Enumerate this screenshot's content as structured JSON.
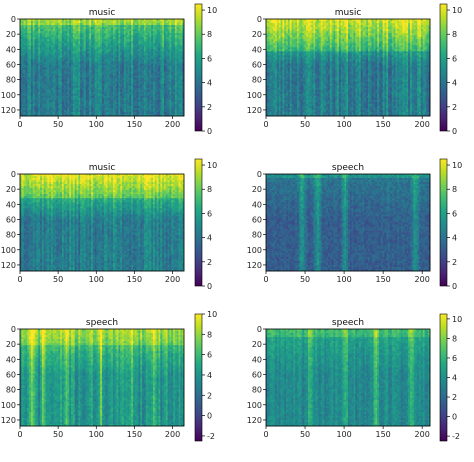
{
  "chart_data": [
    {
      "type": "heatmap",
      "title": "music",
      "xlabel": "",
      "ylabel": "",
      "xlim": [
        0,
        215
      ],
      "ylim": [
        128,
        0
      ],
      "xticks": [
        0,
        50,
        100,
        150,
        200
      ],
      "yticks": [
        0,
        20,
        40,
        60,
        80,
        100,
        120
      ],
      "colorbar": {
        "min": 0,
        "max": 10.5,
        "ticks": [
          0,
          2,
          4,
          6,
          8,
          10
        ]
      },
      "colormap": "viridis",
      "pattern": {
        "base_top": 8.0,
        "base_bottom": 4.5,
        "stripe": 2.2,
        "seed": 11,
        "bright_band_rows": [
          0,
          6
        ]
      }
    },
    {
      "type": "heatmap",
      "title": "music",
      "xlabel": "",
      "ylabel": "",
      "xlim": [
        0,
        210
      ],
      "ylim": [
        128,
        0
      ],
      "xticks": [
        0,
        50,
        100,
        150,
        200
      ],
      "yticks": [
        0,
        20,
        40,
        60,
        80,
        100,
        120
      ],
      "colorbar": {
        "min": 0,
        "max": 10.5,
        "ticks": [
          0,
          2,
          4,
          6,
          8,
          10
        ]
      },
      "colormap": "viridis",
      "pattern": {
        "base_top": 8.8,
        "base_bottom": 4.5,
        "stripe": 2.4,
        "seed": 23,
        "bright_band_rows": [
          0,
          40
        ]
      }
    },
    {
      "type": "heatmap",
      "title": "music",
      "xlabel": "",
      "ylabel": "",
      "xlim": [
        0,
        215
      ],
      "ylim": [
        128,
        0
      ],
      "xticks": [
        0,
        50,
        100,
        150,
        200
      ],
      "yticks": [
        0,
        20,
        40,
        60,
        80,
        100,
        120
      ],
      "colorbar": {
        "min": 0,
        "max": 10.5,
        "ticks": [
          0,
          2,
          4,
          6,
          8,
          10
        ]
      },
      "colormap": "viridis",
      "pattern": {
        "base_top": 9.0,
        "base_bottom": 4.5,
        "stripe": 2.0,
        "seed": 37,
        "bright_band_rows": [
          0,
          30
        ]
      }
    },
    {
      "type": "heatmap",
      "title": "speech",
      "xlabel": "",
      "ylabel": "",
      "xlim": [
        0,
        210
      ],
      "ylim": [
        128,
        0
      ],
      "xticks": [
        0,
        50,
        100,
        150,
        200
      ],
      "yticks": [
        0,
        20,
        40,
        60,
        80,
        100,
        120
      ],
      "colorbar": {
        "min": 0,
        "max": 10.5,
        "ticks": [
          0,
          2,
          4,
          6,
          8,
          10
        ]
      },
      "colormap": "viridis",
      "pattern": {
        "base_top": 4.2,
        "base_bottom": 3.2,
        "stripe": 0.6,
        "seed": 53,
        "bright_band_rows": [
          0,
          4
        ],
        "bright_columns": [
          45,
          65,
          100,
          190
        ]
      }
    },
    {
      "type": "heatmap",
      "title": "speech",
      "xlabel": "",
      "ylabel": "",
      "xlim": [
        0,
        215
      ],
      "ylim": [
        128,
        0
      ],
      "xticks": [
        0,
        50,
        100,
        150,
        200
      ],
      "yticks": [
        0,
        20,
        40,
        60,
        80,
        100,
        120
      ],
      "colorbar": {
        "min": -2.5,
        "max": 10,
        "ticks": [
          -2,
          0,
          2,
          4,
          6,
          8,
          10
        ]
      },
      "colormap": "viridis",
      "pattern": {
        "base_top": 7.0,
        "base_bottom": 4.0,
        "stripe": 2.6,
        "seed": 71,
        "bright_band_rows": [
          0,
          20
        ],
        "bright_columns": [
          15,
          30,
          60,
          105,
          145,
          175
        ]
      }
    },
    {
      "type": "heatmap",
      "title": "speech",
      "xlabel": "",
      "ylabel": "",
      "xlim": [
        0,
        210
      ],
      "ylim": [
        128,
        0
      ],
      "xticks": [
        0,
        50,
        100,
        150,
        200
      ],
      "yticks": [
        0,
        20,
        40,
        60,
        80,
        100,
        120
      ],
      "colorbar": {
        "min": -2.5,
        "max": 10.5,
        "ticks": [
          -2,
          0,
          2,
          4,
          6,
          8,
          10
        ]
      },
      "colormap": "viridis",
      "pattern": {
        "base_top": 5.2,
        "base_bottom": 3.6,
        "stripe": 1.8,
        "seed": 89,
        "bright_band_rows": [
          0,
          8
        ],
        "bright_columns": [
          55,
          100,
          140,
          185
        ]
      }
    }
  ]
}
